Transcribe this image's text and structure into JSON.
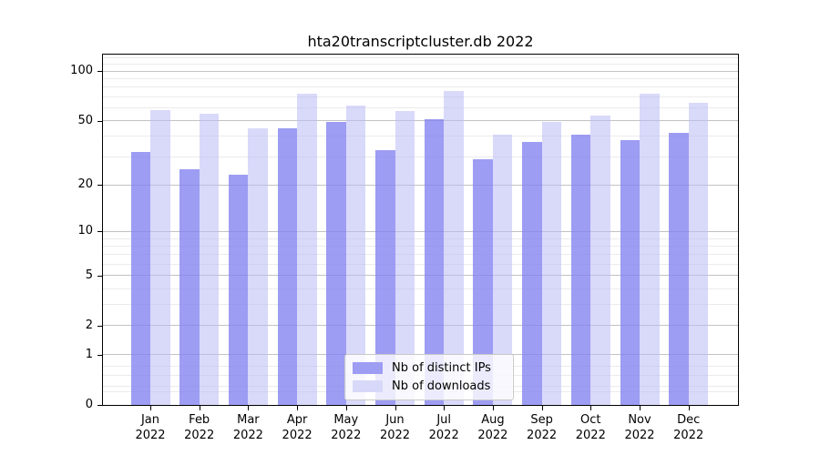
{
  "chart_data": {
    "type": "bar",
    "title": "hta20transcriptcluster.db 2022",
    "categories": [
      "Jan",
      "Feb",
      "Mar",
      "Apr",
      "May",
      "Jun",
      "Jul",
      "Aug",
      "Sep",
      "Oct",
      "Nov",
      "Dec"
    ],
    "x_year_label": "2022",
    "series": [
      {
        "name": "Nb of distinct IPs",
        "color": "#8282f0",
        "bar_opacity": 0.78,
        "legend_color": "#9d9df3",
        "values": [
          32,
          25,
          23,
          45,
          49,
          33,
          51,
          29,
          37,
          41,
          38,
          42
        ]
      },
      {
        "name": "Nb of downloads",
        "color": "#b9b9f5",
        "bar_opacity": 0.55,
        "legend_color": "#d8d8f9",
        "values": [
          58,
          55,
          45,
          73,
          62,
          57,
          76,
          41,
          49,
          54,
          73,
          64
        ]
      }
    ],
    "yaxis": {
      "scale": "log10(1+y)",
      "major_ticks": [
        100,
        50,
        20,
        10,
        5,
        2,
        1,
        0
      ],
      "minor_gridlines": [
        0.2,
        0.3,
        0.5,
        0.7,
        3,
        4,
        6,
        7,
        8,
        9,
        30,
        40,
        60,
        70,
        80,
        90,
        110,
        120
      ],
      "ylim": [
        0,
        125
      ]
    },
    "legend": {
      "position": "lower center"
    },
    "grid": true,
    "colors": {
      "major_gridline": "#c3c3c3",
      "minor_gridline": "#ebebeb",
      "axis": "#000000",
      "text": "#000000"
    }
  }
}
